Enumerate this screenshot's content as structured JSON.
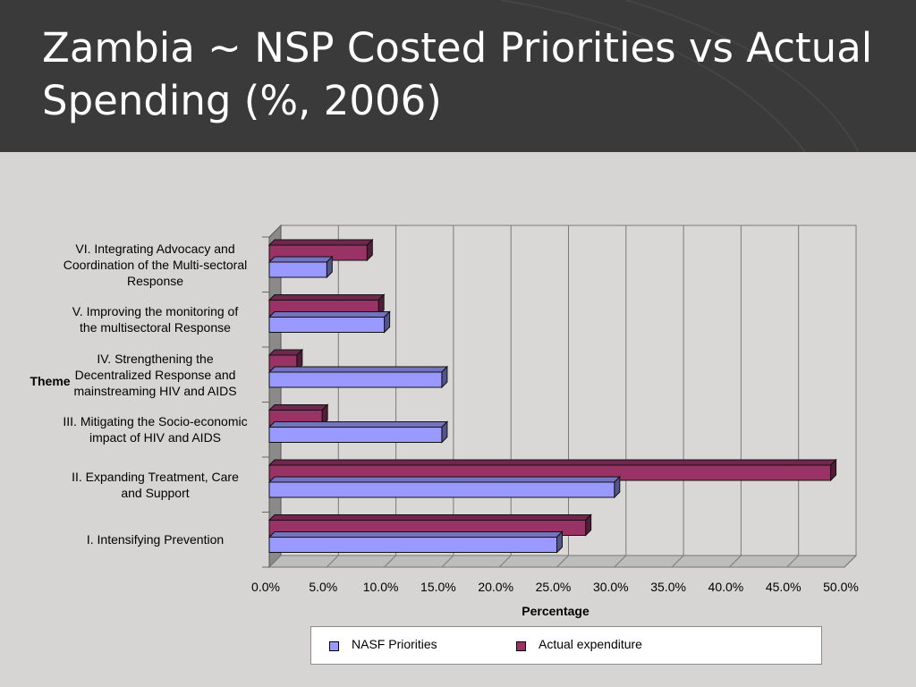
{
  "slide": {
    "title_line1": "Zambia ~ NSP Costed Priorities vs Actual",
    "title_line2": "Spending  (%, 2006)"
  },
  "chart_data": {
    "type": "bar",
    "orientation": "horizontal",
    "ylabel": "Theme",
    "xlabel": "Percentage",
    "xlim": [
      0,
      50
    ],
    "x_ticks": [
      "0.0%",
      "5.0%",
      "10.0%",
      "15.0%",
      "20.0%",
      "25.0%",
      "30.0%",
      "35.0%",
      "40.0%",
      "45.0%",
      "50.0%"
    ],
    "categories": [
      "I. Intensifying Prevention",
      "II.  Expanding Treatment, Care and Support",
      "III. Mitigating the Socio-economic impact of HIV and AIDS",
      "IV.  Strengthening the Decentralized Response and mainstreaming HIV and AIDS",
      "V.  Improving the monitoring of the multisectoral Response",
      "VI. Integrating Advocacy and Coordination of the Multi-sectoral Response"
    ],
    "category_lines": [
      [
        "I. Intensifying Prevention"
      ],
      [
        "II.  Expanding Treatment, Care",
        "and Support"
      ],
      [
        "III. Mitigating the Socio-economic",
        "impact of HIV and AIDS"
      ],
      [
        "IV.  Strengthening the",
        "Decentralized Response and",
        "mainstreaming HIV and AIDS"
      ],
      [
        "V.  Improving the monitoring of",
        "the multisectoral Response"
      ],
      [
        "VI. Integrating Advocacy and",
        "Coordination of the Multi-sectoral",
        "Response"
      ]
    ],
    "series": [
      {
        "name": "NASF Priorities",
        "color": "#9999ff",
        "values": [
          25,
          30,
          15,
          15,
          10,
          5
        ]
      },
      {
        "name": "Actual expenditure",
        "color": "#993366",
        "values": [
          27.5,
          48.8,
          4.6,
          2.4,
          9.5,
          8.5
        ]
      }
    ],
    "grid": true,
    "legend_position": "bottom",
    "three_d": true
  }
}
